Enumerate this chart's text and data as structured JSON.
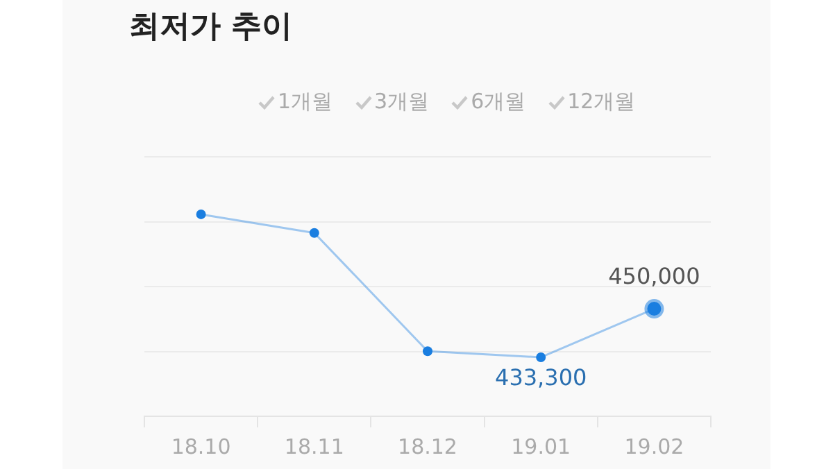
{
  "chart_data": {
    "type": "line",
    "title": "최저가 추이",
    "annotations": [
      "1개월",
      "3개월",
      "6개월",
      "12개월"
    ],
    "categories": [
      "18.10",
      "18.11",
      "18.12",
      "19.01",
      "19.02"
    ],
    "series": [
      {
        "color": "#1a7ee0",
        "values": [
          482500,
          476100,
          435400,
          433300,
          450000
        ],
        "value_labels": [
          null,
          null,
          null,
          "433,300",
          "450,000"
        ]
      }
    ],
    "ylim": [
      413000,
      502300
    ],
    "yticks": [
      {
        "value": 413000,
        "label": null
      },
      {
        "value": 435300,
        "label": null
      },
      {
        "value": 457600,
        "label": null
      },
      {
        "value": 479900,
        "label": null
      },
      {
        "value": 502200,
        "label": null
      }
    ],
    "tick_labels": "x",
    "grid": "y",
    "marker": "circle",
    "line_style": "solid",
    "legend": false
  }
}
